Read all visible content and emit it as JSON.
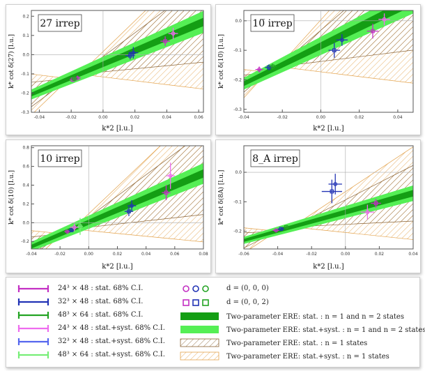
{
  "colors": {
    "magenta": "#c32fc3",
    "blue": "#2233b5",
    "green": "#23a323",
    "light_magenta": "#ee6cee",
    "light_blue": "#5566ee",
    "light_green": "#77ee77",
    "band_dark": "#149e14",
    "band_light": "#55ef55",
    "hatch": "#e3a24b",
    "hatch_dark": "#8a6233"
  },
  "chart_data": [
    {
      "type": "scatter",
      "title": "27 irrep",
      "xlabel": "k*2 [l.u.]",
      "ylabel": "k* cot δ(27) [l.u.]",
      "xlim": [
        -0.045,
        0.063
      ],
      "ylim": [
        -0.3,
        0.23
      ],
      "xticks": [
        -0.04,
        -0.02,
        0.0,
        0.02,
        0.04,
        0.06
      ],
      "xtick_labels": [
        "-0.04",
        "-0.02",
        "0.00",
        "0.02",
        "0.04",
        "0.06"
      ],
      "yticks": [
        -0.3,
        -0.2,
        -0.1,
        0.0,
        0.1,
        0.2
      ],
      "ytick_labels": [
        "-0.3",
        "-0.2",
        "-0.1",
        "0.0",
        "0.1",
        "0.2"
      ],
      "fit": {
        "a": -0.05,
        "b": 3.5,
        "band_light": 0.026,
        "band_dark": 0.01,
        "pivot": -0.018,
        "slope_spread": 4.5,
        "hatch_offset": 0.015
      },
      "points": [
        {
          "x": -0.019,
          "y": -0.13,
          "ex": 0.002,
          "ey": 0.012,
          "color": "magenta",
          "shape": "square"
        },
        {
          "x": -0.016,
          "y": -0.122,
          "ex": 0.002,
          "ey": 0.012,
          "color": "magenta",
          "shape": "circle"
        },
        {
          "x": -0.018,
          "y": -0.126,
          "ex": 0.002,
          "ey": 0.012,
          "color": "green",
          "shape": "square"
        },
        {
          "x": 0.017,
          "y": -0.005,
          "ex": 0.003,
          "ey": 0.02,
          "color": "blue",
          "shape": "square"
        },
        {
          "x": 0.019,
          "y": 0.01,
          "ex": 0.003,
          "ey": 0.03,
          "color": "blue",
          "shape": "circle"
        },
        {
          "x": 0.039,
          "y": 0.07,
          "ex": 0.003,
          "ey": 0.025,
          "color": "magenta",
          "shape": "square"
        },
        {
          "x": 0.044,
          "y": 0.11,
          "ex": 0.003,
          "ey": 0.03,
          "color": "light_magenta",
          "shape": "circle"
        }
      ]
    },
    {
      "type": "scatter",
      "title": "10̅ irrep",
      "xlabel": "k*2 [l.u.]",
      "ylabel": "k* cot δ(10̅) [l.u.]",
      "xlim": [
        -0.04,
        0.048
      ],
      "ylim": [
        -0.31,
        0.035
      ],
      "xticks": [
        -0.04,
        -0.02,
        0.0,
        0.02,
        0.04
      ],
      "xtick_labels": [
        "-0.04",
        "-0.02",
        "0.00",
        "0.02",
        "0.04"
      ],
      "yticks": [
        -0.3,
        -0.2,
        -0.1,
        0.0
      ],
      "ytick_labels": [
        "-0.3",
        "-0.2",
        "-0.1",
        "0.0"
      ],
      "fit": {
        "a": -0.085,
        "b": 3.2,
        "band_light": 0.02,
        "band_dark": 0.008,
        "pivot": -0.025,
        "slope_spread": 4.0,
        "hatch_offset": 0.012
      },
      "points": [
        {
          "x": -0.032,
          "y": -0.165,
          "ex": 0.002,
          "ey": 0.01,
          "color": "magenta",
          "shape": "circle"
        },
        {
          "x": -0.027,
          "y": -0.158,
          "ex": 0.002,
          "ey": 0.01,
          "color": "blue",
          "shape": "square"
        },
        {
          "x": -0.025,
          "y": -0.155,
          "ex": 0.002,
          "ey": 0.01,
          "color": "green",
          "shape": "square"
        },
        {
          "x": 0.007,
          "y": -0.1,
          "ex": 0.003,
          "ey": 0.025,
          "color": "blue",
          "shape": "square"
        },
        {
          "x": 0.011,
          "y": -0.065,
          "ex": 0.003,
          "ey": 0.02,
          "color": "blue",
          "shape": "circle"
        },
        {
          "x": 0.027,
          "y": -0.035,
          "ex": 0.003,
          "ey": 0.025,
          "color": "magenta",
          "shape": "square"
        },
        {
          "x": 0.033,
          "y": 0.005,
          "ex": 0.003,
          "ey": 0.02,
          "color": "light_magenta",
          "shape": "circle"
        }
      ]
    },
    {
      "type": "scatter",
      "title": "10 irrep",
      "xlabel": "k*2 [l.u.]",
      "ylabel": "k* cot δ(10) [l.u.]",
      "xlim": [
        -0.04,
        0.08
      ],
      "ylim": [
        -0.28,
        0.82
      ],
      "xticks": [
        -0.04,
        -0.02,
        0.0,
        0.02,
        0.04,
        0.06,
        0.08
      ],
      "xtick_labels": [
        "-0.04",
        "-0.02",
        "0.00",
        "0.02",
        "0.04",
        "0.06",
        "0.08"
      ],
      "yticks": [
        -0.2,
        0.0,
        0.2,
        0.4,
        0.6,
        0.8
      ],
      "ytick_labels": [
        "-0.2",
        "0.0",
        "0.2",
        "0.4",
        "0.6",
        "0.8"
      ],
      "fit": {
        "a": 0.005,
        "b": 6.5,
        "band_light": 0.05,
        "band_dark": 0.02,
        "pivot": -0.015,
        "slope_spread": 8.0,
        "hatch_offset": 0.03
      },
      "points": [
        {
          "x": -0.015,
          "y": -0.095,
          "ex": 0.002,
          "ey": 0.02,
          "color": "magenta",
          "shape": "circle"
        },
        {
          "x": -0.012,
          "y": -0.08,
          "ex": 0.002,
          "ey": 0.02,
          "color": "blue",
          "shape": "square"
        },
        {
          "x": -0.01,
          "y": -0.05,
          "ex": 0.003,
          "ey": 0.04,
          "color": "light_magenta",
          "shape": "circle"
        },
        {
          "x": -0.006,
          "y": -0.04,
          "ex": 0.002,
          "ey": 0.09,
          "color": "light_green",
          "shape": "square"
        },
        {
          "x": 0.028,
          "y": 0.12,
          "ex": 0.003,
          "ey": 0.05,
          "color": "blue",
          "shape": "square"
        },
        {
          "x": 0.03,
          "y": 0.18,
          "ex": 0.003,
          "ey": 0.06,
          "color": "blue",
          "shape": "circle"
        },
        {
          "x": 0.054,
          "y": 0.32,
          "ex": 0.003,
          "ey": 0.08,
          "color": "magenta",
          "shape": "square"
        },
        {
          "x": 0.057,
          "y": 0.5,
          "ex": 0.003,
          "ey": 0.14,
          "color": "light_magenta",
          "shape": "circle"
        }
      ]
    },
    {
      "type": "scatter",
      "title": "8_A irrep",
      "xlabel": "k*2 [l.u.]",
      "ylabel": "k* cot δ(8A) [l.u.]",
      "xlim": [
        -0.06,
        0.04
      ],
      "ylim": [
        -0.26,
        0.09
      ],
      "xticks": [
        -0.06,
        -0.04,
        -0.02,
        0.0,
        0.02,
        0.04
      ],
      "xtick_labels": [
        "-0.06",
        "-0.04",
        "-0.02",
        "0.00",
        "0.02",
        "0.04"
      ],
      "yticks": [
        -0.2,
        -0.1,
        0.0
      ],
      "ytick_labels": [
        "-0.2",
        "-0.1",
        "0.0"
      ],
      "fit": {
        "a": -0.135,
        "b": 1.6,
        "band_light": 0.012,
        "band_dark": 0.005,
        "pivot": -0.036,
        "slope_spread": 2.2,
        "hatch_offset": 0.01
      },
      "points": [
        {
          "x": -0.041,
          "y": -0.197,
          "ex": 0.002,
          "ey": 0.006,
          "color": "magenta",
          "shape": "circle"
        },
        {
          "x": -0.038,
          "y": -0.192,
          "ex": 0.002,
          "ey": 0.006,
          "color": "blue",
          "shape": "square"
        },
        {
          "x": -0.035,
          "y": -0.186,
          "ex": 0.002,
          "ey": 0.006,
          "color": "green",
          "shape": "square"
        },
        {
          "x": -0.008,
          "y": -0.065,
          "ex": 0.006,
          "ey": 0.04,
          "color": "blue",
          "shape": "square"
        },
        {
          "x": -0.006,
          "y": -0.04,
          "ex": 0.004,
          "ey": 0.035,
          "color": "blue",
          "shape": "circle"
        },
        {
          "x": 0.013,
          "y": -0.135,
          "ex": 0.004,
          "ey": 0.025,
          "color": "light_magenta",
          "shape": "circle"
        },
        {
          "x": 0.018,
          "y": -0.105,
          "ex": 0.003,
          "ey": 0.015,
          "color": "magenta",
          "shape": "square"
        }
      ]
    }
  ],
  "legend": {
    "errorbars": [
      {
        "label": "24³ × 48 : stat. 68% C.I.",
        "color": "magenta"
      },
      {
        "label": "32³ × 48 : stat. 68% C.I.",
        "color": "blue"
      },
      {
        "label": "48³ × 64 : stat. 68% C.I.",
        "color": "green"
      },
      {
        "label": "24³ × 48 : stat.+syst. 68% C.I.",
        "color": "light_magenta"
      },
      {
        "label": "32³ × 48 : stat.+syst. 68% C.I.",
        "color": "light_blue"
      },
      {
        "label": "48³ × 64 : stat.+syst. 68% C.I.",
        "color": "light_green"
      }
    ],
    "markers": [
      {
        "label": "d = (0, 0, 0)",
        "shape": "circle"
      },
      {
        "label": "d = (0, 0, 2)",
        "shape": "square"
      }
    ],
    "bands": [
      {
        "label": "Two-parameter ERE: stat. : n = 1 and n = 2 states",
        "style": "band_dark"
      },
      {
        "label": "Two-parameter ERE: stat.+syst. : n = 1 and n = 2 states",
        "style": "band_light"
      },
      {
        "label": "Two-parameter ERE: stat. : n = 1 states",
        "style": "hatch_dark"
      },
      {
        "label": "Two-parameter ERE: stat.+syst. : n = 1 states",
        "style": "hatch"
      }
    ]
  }
}
